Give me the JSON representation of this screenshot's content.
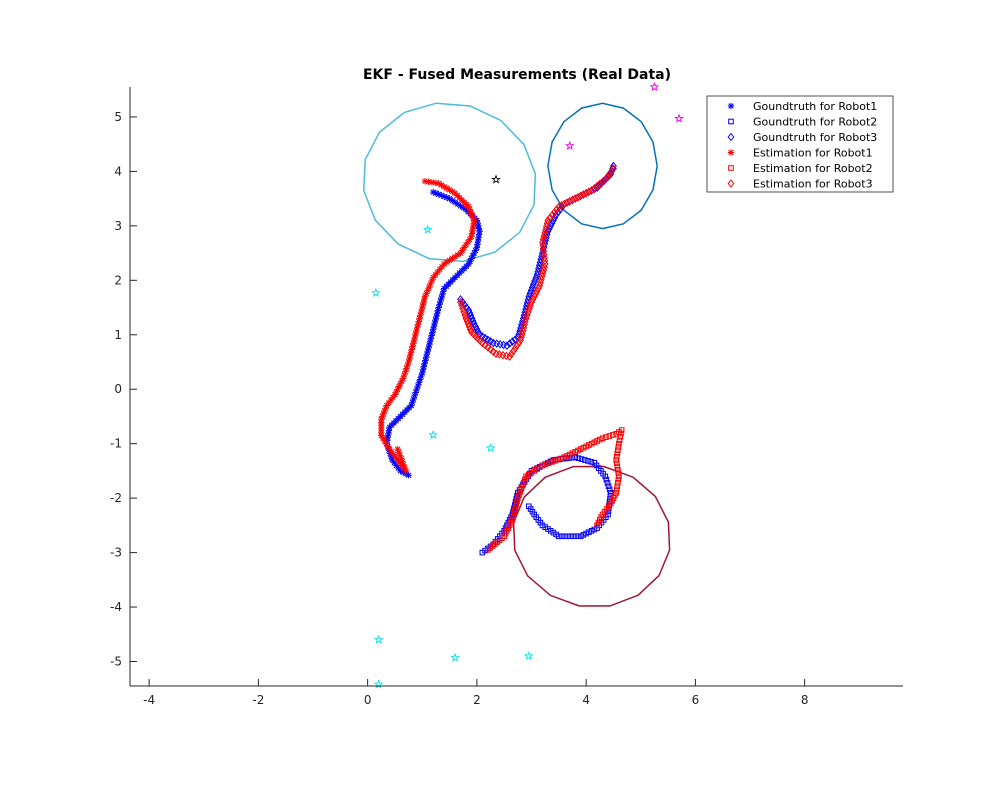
{
  "chart_data": {
    "type": "scatter",
    "title": "EKF - Fused Measurements (Real Data)",
    "xlabel": "",
    "ylabel": "",
    "xlim": [
      -4.35,
      9.8
    ],
    "ylim": [
      -5.45,
      5.55
    ],
    "x_ticks": [
      -4,
      -2,
      0,
      2,
      4,
      6,
      8
    ],
    "y_ticks": [
      -5,
      -4,
      -3,
      -2,
      -1,
      0,
      1,
      2,
      3,
      4,
      5
    ],
    "grid": false,
    "legend_position": "top-right",
    "series": [
      {
        "name": "Goundtruth for Robot1",
        "marker": "asterisk",
        "color": "#0000ff",
        "points": [
          [
            1.2,
            3.62
          ],
          [
            1.5,
            3.5
          ],
          [
            1.8,
            3.3
          ],
          [
            2.0,
            3.1
          ],
          [
            2.05,
            2.9
          ],
          [
            2.0,
            2.6
          ],
          [
            1.85,
            2.3
          ],
          [
            1.6,
            2.05
          ],
          [
            1.4,
            1.85
          ],
          [
            1.3,
            1.5
          ],
          [
            1.2,
            1.1
          ],
          [
            1.1,
            0.7
          ],
          [
            1.0,
            0.3
          ],
          [
            0.9,
            0.0
          ],
          [
            0.8,
            -0.3
          ],
          [
            0.6,
            -0.5
          ],
          [
            0.4,
            -0.7
          ],
          [
            0.35,
            -1.0
          ],
          [
            0.45,
            -1.3
          ],
          [
            0.6,
            -1.5
          ],
          [
            0.75,
            -1.58
          ]
        ]
      },
      {
        "name": "Goundtruth for Robot2",
        "marker": "square",
        "color": "#0000ff",
        "points": [
          [
            2.1,
            -3.0
          ],
          [
            2.3,
            -2.85
          ],
          [
            2.5,
            -2.6
          ],
          [
            2.65,
            -2.3
          ],
          [
            2.75,
            -1.9
          ],
          [
            3.0,
            -1.5
          ],
          [
            3.4,
            -1.3
          ],
          [
            3.8,
            -1.25
          ],
          [
            4.15,
            -1.35
          ],
          [
            4.35,
            -1.6
          ],
          [
            4.45,
            -1.9
          ],
          [
            4.4,
            -2.3
          ],
          [
            4.2,
            -2.55
          ],
          [
            3.9,
            -2.7
          ],
          [
            3.5,
            -2.7
          ],
          [
            3.2,
            -2.5
          ],
          [
            3.05,
            -2.3
          ],
          [
            2.95,
            -2.15
          ]
        ]
      },
      {
        "name": "Goundtruth for Robot3",
        "marker": "diamond",
        "color": "#0000ff",
        "points": [
          [
            1.7,
            1.65
          ],
          [
            1.85,
            1.45
          ],
          [
            1.95,
            1.2
          ],
          [
            2.05,
            1.0
          ],
          [
            2.3,
            0.85
          ],
          [
            2.55,
            0.8
          ],
          [
            2.75,
            0.95
          ],
          [
            2.85,
            1.3
          ],
          [
            2.95,
            1.7
          ],
          [
            3.1,
            2.1
          ],
          [
            3.2,
            2.5
          ],
          [
            3.3,
            2.9
          ],
          [
            3.45,
            3.2
          ],
          [
            3.6,
            3.4
          ],
          [
            3.9,
            3.55
          ],
          [
            4.2,
            3.7
          ],
          [
            4.45,
            3.95
          ],
          [
            4.5,
            4.1
          ]
        ]
      },
      {
        "name": "Estimation for Robot1",
        "marker": "asterisk",
        "color": "#ff0000",
        "points": [
          [
            1.05,
            3.82
          ],
          [
            1.3,
            3.78
          ],
          [
            1.6,
            3.6
          ],
          [
            1.85,
            3.35
          ],
          [
            1.95,
            3.1
          ],
          [
            1.9,
            2.8
          ],
          [
            1.7,
            2.5
          ],
          [
            1.4,
            2.3
          ],
          [
            1.2,
            2.05
          ],
          [
            1.05,
            1.7
          ],
          [
            0.95,
            1.3
          ],
          [
            0.85,
            0.9
          ],
          [
            0.75,
            0.5
          ],
          [
            0.65,
            0.2
          ],
          [
            0.5,
            -0.1
          ],
          [
            0.35,
            -0.3
          ],
          [
            0.25,
            -0.55
          ],
          [
            0.25,
            -0.85
          ],
          [
            0.4,
            -1.1
          ],
          [
            0.55,
            -1.3
          ],
          [
            0.7,
            -1.5
          ],
          [
            0.55,
            -1.1
          ]
        ]
      },
      {
        "name": "Estimation for Robot2",
        "marker": "square",
        "color": "#ff0000",
        "points": [
          [
            2.2,
            -2.95
          ],
          [
            2.5,
            -2.7
          ],
          [
            2.65,
            -2.4
          ],
          [
            2.75,
            -2.0
          ],
          [
            2.9,
            -1.6
          ],
          [
            3.2,
            -1.4
          ],
          [
            3.6,
            -1.25
          ],
          [
            4.0,
            -1.05
          ],
          [
            4.3,
            -0.9
          ],
          [
            4.55,
            -0.82
          ],
          [
            4.65,
            -0.75
          ],
          [
            4.6,
            -1.0
          ],
          [
            4.55,
            -1.3
          ],
          [
            4.6,
            -1.6
          ],
          [
            4.55,
            -1.9
          ],
          [
            4.45,
            -2.1
          ],
          [
            4.3,
            -2.3
          ],
          [
            4.2,
            -2.5
          ]
        ]
      },
      {
        "name": "Estimation for Robot3",
        "marker": "diamond",
        "color": "#ff0000",
        "points": [
          [
            1.7,
            1.6
          ],
          [
            1.8,
            1.3
          ],
          [
            1.9,
            1.05
          ],
          [
            2.1,
            0.85
          ],
          [
            2.35,
            0.65
          ],
          [
            2.6,
            0.6
          ],
          [
            2.8,
            0.9
          ],
          [
            2.9,
            1.3
          ],
          [
            3.0,
            1.6
          ],
          [
            3.15,
            1.9
          ],
          [
            3.25,
            2.3
          ],
          [
            3.2,
            2.7
          ],
          [
            3.3,
            3.1
          ],
          [
            3.5,
            3.35
          ],
          [
            3.8,
            3.5
          ],
          [
            4.1,
            3.65
          ],
          [
            4.35,
            3.85
          ],
          [
            4.5,
            4.05
          ]
        ]
      }
    ],
    "landmarks": [
      {
        "color": "#00e5ee",
        "points": [
          [
            1.1,
            2.93
          ],
          [
            0.15,
            1.77
          ],
          [
            1.2,
            -0.84
          ],
          [
            2.25,
            -1.08
          ],
          [
            0.2,
            -4.6
          ],
          [
            1.6,
            -4.93
          ],
          [
            2.95,
            -4.9
          ],
          [
            0.2,
            -5.42
          ]
        ]
      },
      {
        "color": "#ee00ee",
        "points": [
          [
            5.25,
            5.55
          ],
          [
            5.7,
            4.97
          ],
          [
            3.7,
            4.47
          ]
        ]
      },
      {
        "color": "#000000",
        "points": [
          [
            2.35,
            3.85
          ]
        ]
      }
    ],
    "ellipses": [
      {
        "color": "#4cbbe0",
        "cx": 1.5,
        "cy": 3.8,
        "rx": 1.6,
        "ry": 1.45,
        "angle": -15
      },
      {
        "color": "#0072bd",
        "cx": 4.3,
        "cy": 4.1,
        "rx": 1.0,
        "ry": 1.15,
        "angle": 0
      },
      {
        "color": "#a2142f",
        "cx": 4.1,
        "cy": -2.7,
        "rx": 1.45,
        "ry": 1.3,
        "angle": -10
      }
    ]
  }
}
